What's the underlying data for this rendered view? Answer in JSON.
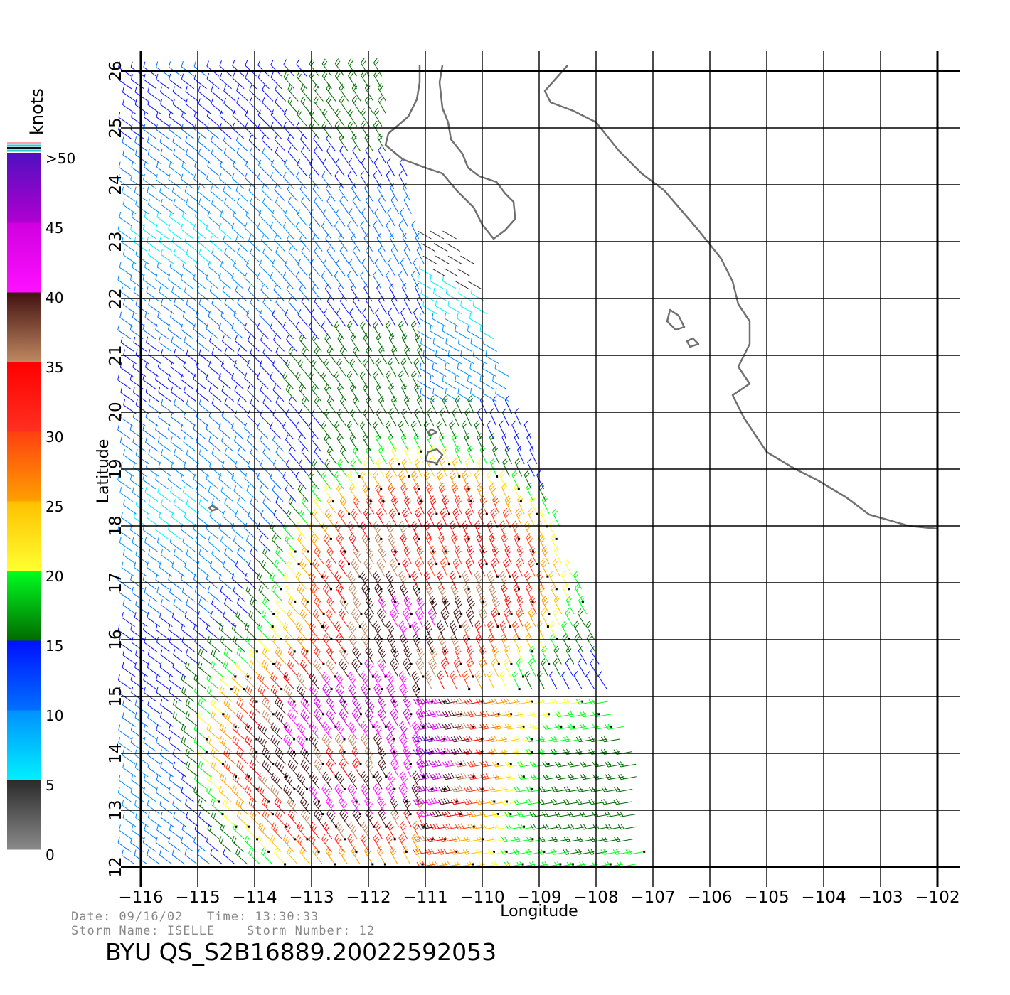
{
  "map": {
    "x_label": "Longitude",
    "y_label": "Latitude",
    "lon_range": [
      -116,
      -102
    ],
    "lat_range": [
      12,
      26
    ],
    "lon_ticks": [
      "−116",
      "−115",
      "−114",
      "−113",
      "−112",
      "−111",
      "−110",
      "−109",
      "−108",
      "−107",
      "−106",
      "−105",
      "−104",
      "−103",
      "−102"
    ],
    "lat_ticks": [
      "12",
      "13",
      "14",
      "15",
      "16",
      "17",
      "18",
      "19",
      "20",
      "21",
      "22",
      "23",
      "24",
      "25",
      "26"
    ],
    "coastline_color": "#707070",
    "grid_color": "#000000"
  },
  "legend": {
    "title": "knots",
    "labels": [
      ">50",
      "45",
      "40",
      "35",
      "30",
      "25",
      "20",
      "15",
      "10",
      "5",
      "0"
    ],
    "segments": [
      {
        "range": [
          0,
          5
        ],
        "colors": [
          "#8a8a8a",
          "#2a2a2a"
        ]
      },
      {
        "range": [
          5,
          10
        ],
        "colors": [
          "#00f0ff",
          "#0090ff"
        ]
      },
      {
        "range": [
          10,
          15
        ],
        "colors": [
          "#0070ff",
          "#0010ff"
        ]
      },
      {
        "range": [
          15,
          20
        ],
        "colors": [
          "#006a00",
          "#00ff20"
        ]
      },
      {
        "range": [
          20,
          25
        ],
        "colors": [
          "#ffff30",
          "#ffc000"
        ]
      },
      {
        "range": [
          25,
          30
        ],
        "colors": [
          "#ffa000",
          "#ff4010"
        ]
      },
      {
        "range": [
          30,
          35
        ],
        "colors": [
          "#ff3020",
          "#ff0000"
        ]
      },
      {
        "range": [
          35,
          40
        ],
        "colors": [
          "#c08860",
          "#401010"
        ]
      },
      {
        "range": [
          40,
          45
        ],
        "colors": [
          "#ff10ff",
          "#d000e0"
        ]
      },
      {
        "range": [
          45,
          50
        ],
        "colors": [
          "#b000d0",
          "#5010c0"
        ]
      }
    ],
    "top_stripes": [
      "#ffa0a0",
      "#30c8d0",
      "#101010",
      "#30c8d0"
    ]
  },
  "info": {
    "date_line": "Date: 09/16/02   Time: 13:30:33",
    "storm_line": "Storm Name: ISELLE    Storm Number: 12",
    "title": "BYU QS_S2B16889.20022592053"
  }
}
